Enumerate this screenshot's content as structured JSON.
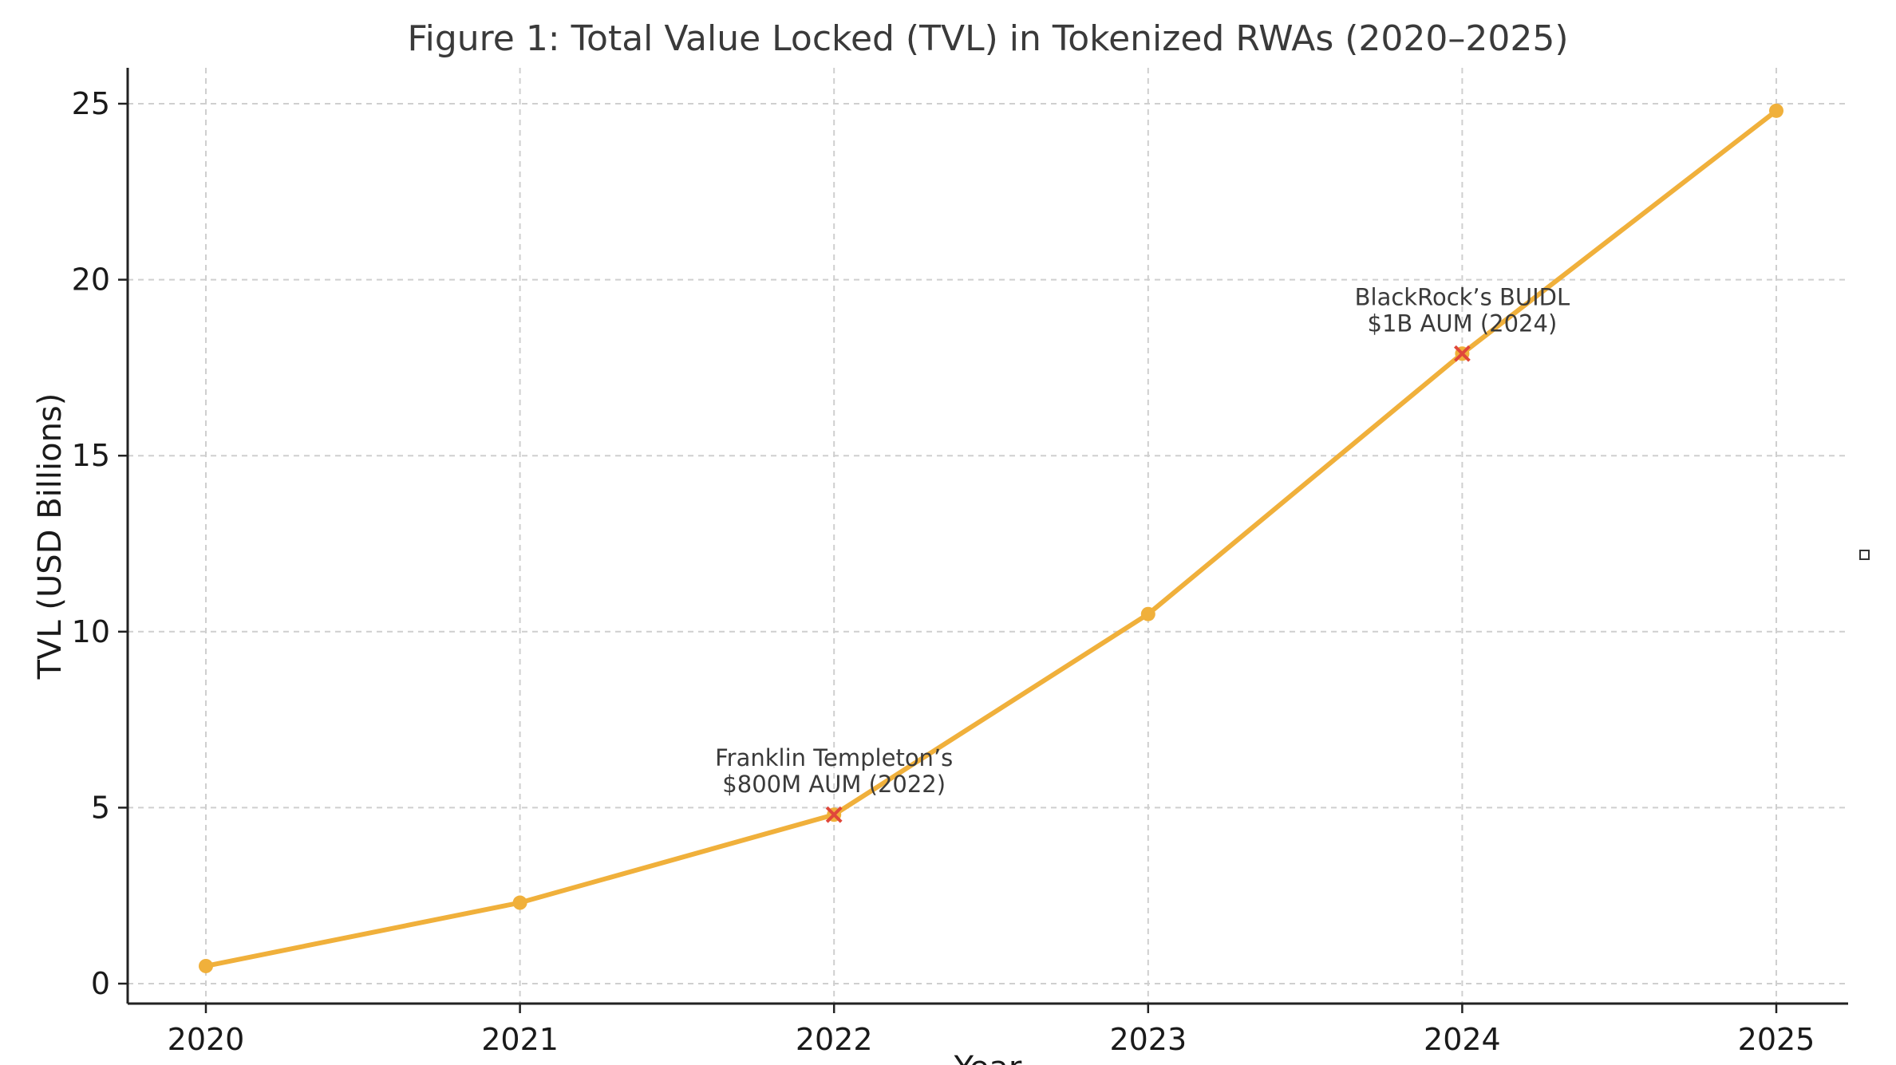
{
  "chart_data": {
    "type": "line",
    "title": "Figure 1: Total Value Locked (TVL) in Tokenized RWAs (2020–2025)",
    "xlabel": "Year",
    "ylabel": "TVL (USD Billions)",
    "x": [
      "2020",
      "2021",
      "2022",
      "2023",
      "2024",
      "2025"
    ],
    "series": [
      {
        "name": "TVL",
        "values": [
          0.5,
          2.3,
          4.8,
          10.5,
          17.9,
          24.8
        ],
        "color": "#f0b03b"
      }
    ],
    "yticks": [
      0,
      5,
      10,
      15,
      20,
      25
    ],
    "ytick_labels": [
      "0",
      "5",
      "10",
      "15",
      "20",
      "25"
    ],
    "ylim": [
      -0.7,
      26
    ],
    "grid": true,
    "annotations": [
      {
        "x": "2022",
        "y": 4.8,
        "lines": [
          "Franklin Templeton’s",
          "$800M AUM (2022)"
        ],
        "marker_color": "#e0473a"
      },
      {
        "x": "2024",
        "y": 17.9,
        "lines": [
          "BlackRock’s BUIDL",
          "$1B AUM (2024)"
        ],
        "marker_color": "#e0473a"
      }
    ]
  }
}
